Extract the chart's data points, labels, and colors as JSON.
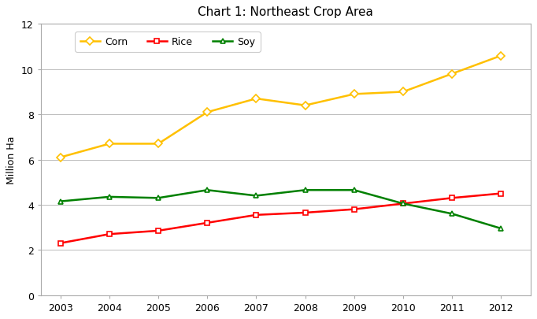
{
  "title": "Chart 1: Northeast Crop Area",
  "ylabel": "Million Ha",
  "years": [
    2003,
    2004,
    2005,
    2006,
    2007,
    2008,
    2009,
    2010,
    2011,
    2012
  ],
  "corn": [
    6.1,
    6.7,
    6.7,
    8.1,
    8.7,
    8.4,
    8.9,
    9.0,
    9.8,
    10.6
  ],
  "rice": [
    2.3,
    2.7,
    2.85,
    3.2,
    3.55,
    3.65,
    3.8,
    4.05,
    4.3,
    4.5
  ],
  "soy": [
    4.15,
    4.35,
    4.3,
    4.65,
    4.4,
    4.65,
    4.65,
    4.05,
    3.6,
    2.95
  ],
  "corn_color": "#FFC000",
  "rice_color": "#FF0000",
  "soy_color": "#008000",
  "ylim": [
    0,
    12
  ],
  "yticks": [
    0,
    2,
    4,
    6,
    8,
    10,
    12
  ],
  "background_color": "#ffffff",
  "plot_bg_color": "#ffffff",
  "grid_color": "#bbbbbb",
  "title_fontsize": 11,
  "label_fontsize": 9,
  "tick_fontsize": 9,
  "legend_fontsize": 9
}
